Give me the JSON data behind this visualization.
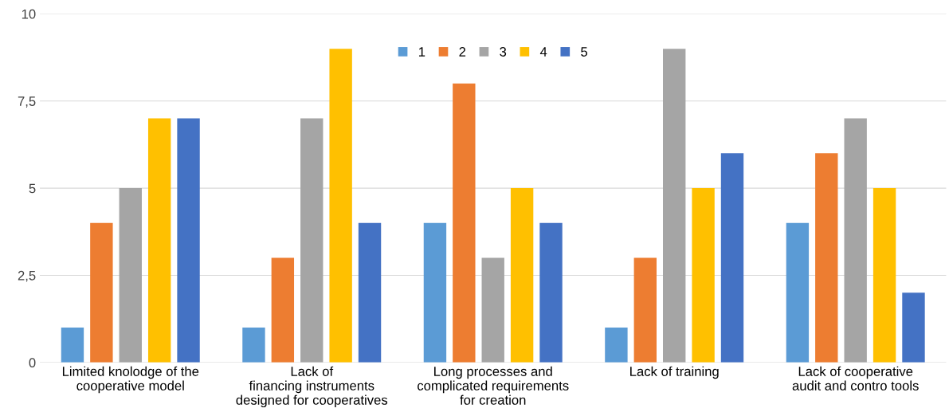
{
  "chart_data": {
    "type": "bar",
    "categories": [
      "Limited knolodge of the\ncooperative model",
      "Lack of\nfinancing instruments\ndesigned for cooperatives",
      "Long processes and\ncomplicated requirements\nfor creation",
      "Lack of training",
      "Lack of cooperative\naudit and contro tools"
    ],
    "series": [
      {
        "name": "1",
        "color": "#5b9bd5",
        "values": [
          1,
          1,
          4,
          1,
          4
        ]
      },
      {
        "name": "2",
        "color": "#ed7d31",
        "values": [
          4,
          3,
          8,
          3,
          6
        ]
      },
      {
        "name": "3",
        "color": "#a5a5a5",
        "values": [
          5,
          7,
          3,
          9,
          7
        ]
      },
      {
        "name": "4",
        "color": "#ffc000",
        "values": [
          7,
          9,
          5,
          5,
          5
        ]
      },
      {
        "name": "5",
        "color": "#4472c4",
        "values": [
          7,
          4,
          4,
          6,
          2
        ]
      }
    ],
    "ylim": [
      0,
      10
    ],
    "yticks": [
      0,
      {
        "value": 2.5,
        "label": "2,5"
      },
      5,
      {
        "value": 7.5,
        "label": "7,5"
      },
      10
    ],
    "grid": "y",
    "legend": "top"
  }
}
